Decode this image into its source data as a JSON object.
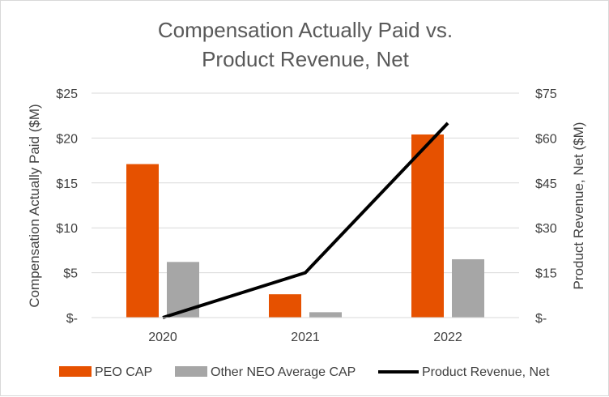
{
  "chart_data": {
    "type": "bar",
    "title_lines": [
      "Compensation Actually Paid vs.",
      "Product Revenue, Net"
    ],
    "categories": [
      "2020",
      "2021",
      "2022"
    ],
    "series": [
      {
        "name": "PEO CAP",
        "kind": "bar",
        "axis": "left",
        "color": "#e65100",
        "values": [
          17.1,
          2.6,
          20.4
        ]
      },
      {
        "name": "Other NEO Average CAP",
        "kind": "bar",
        "axis": "left",
        "color": "#a6a6a6",
        "values": [
          6.2,
          0.6,
          6.5
        ]
      },
      {
        "name": "Product Revenue, Net",
        "kind": "line",
        "axis": "right",
        "color": "#000000",
        "values": [
          0,
          15,
          65
        ]
      }
    ],
    "ylabel_left": "Compensation Actually Paid ($M)",
    "ylabel_right": "Product Revenue, Net ($M)",
    "ylim_left": [
      0,
      25
    ],
    "ylim_right": [
      0,
      75
    ],
    "yticks_left": [
      "$-",
      "$5",
      "$10",
      "$15",
      "$20",
      "$25"
    ],
    "yticks_right": [
      "$-",
      "$15",
      "$30",
      "$45",
      "$60",
      "$75"
    ],
    "grid": true,
    "legend_position": "bottom"
  }
}
